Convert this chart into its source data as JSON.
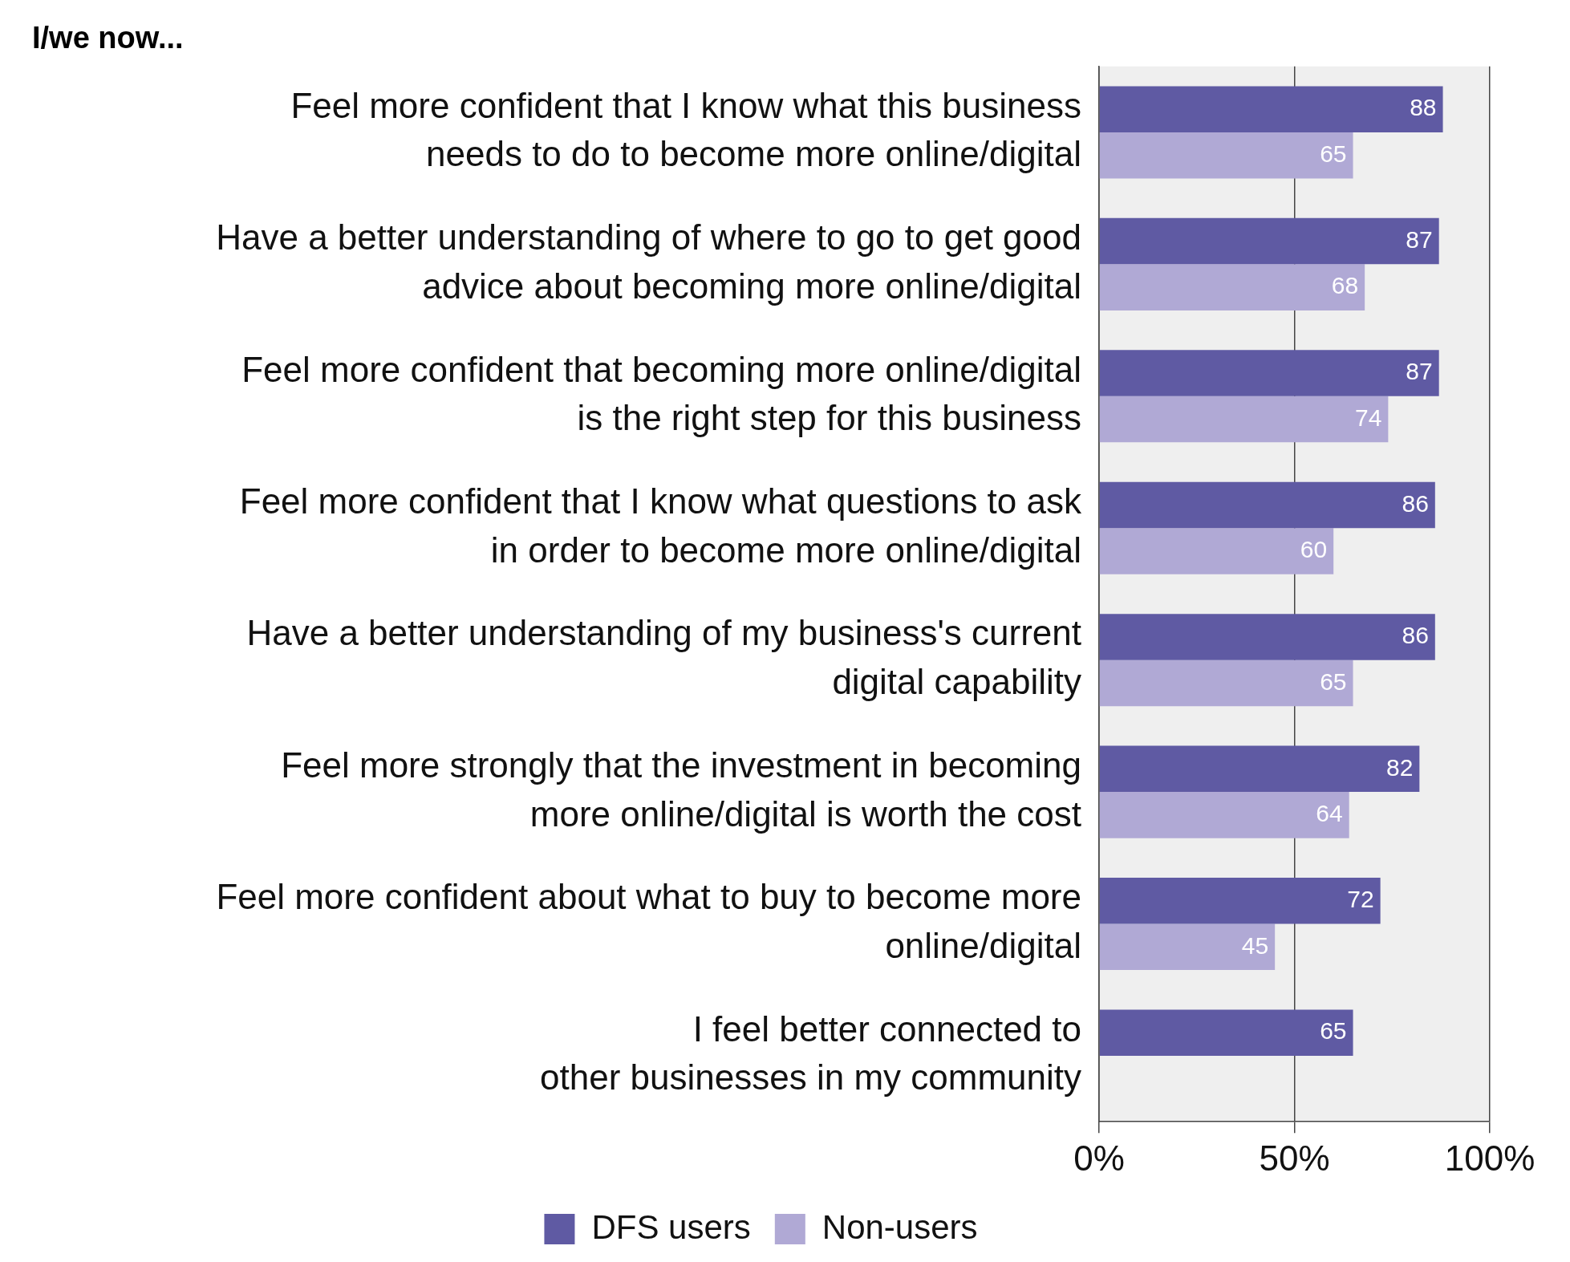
{
  "chart_data": {
    "type": "bar",
    "orientation": "horizontal",
    "title": "I/we now...",
    "categories": [
      "Feel more confident that I know what this business\nneeds to do to become more online/digital",
      "Have a better understanding of where to go to get good\nadvice about becoming more online/digital",
      "Feel more confident that becoming more online/digital\nis the right step for this business",
      "Feel more confident that I know what questions to ask\nin order to become more online/digital",
      "Have a better understanding of my business's current\ndigital capability",
      "Feel more strongly that the investment in becoming\nmore online/digital is worth the cost",
      "Feel more confident about what to buy to become more\nonline/digital",
      "I feel better connected to\nother businesses in my community"
    ],
    "series": [
      {
        "name": "DFS users",
        "color": "#5f5aa3",
        "values": [
          88,
          87,
          87,
          86,
          86,
          82,
          72,
          65
        ]
      },
      {
        "name": "Non-users",
        "color": "#b0a9d5",
        "values": [
          65,
          68,
          74,
          60,
          65,
          64,
          45,
          null
        ]
      }
    ],
    "xlim": [
      0,
      100
    ],
    "xticks": [
      {
        "value": 0,
        "label": "0%"
      },
      {
        "value": 50,
        "label": "50%"
      },
      {
        "value": 100,
        "label": "100%"
      }
    ],
    "grid": "x",
    "legend": "bottom",
    "data_labels": true
  }
}
